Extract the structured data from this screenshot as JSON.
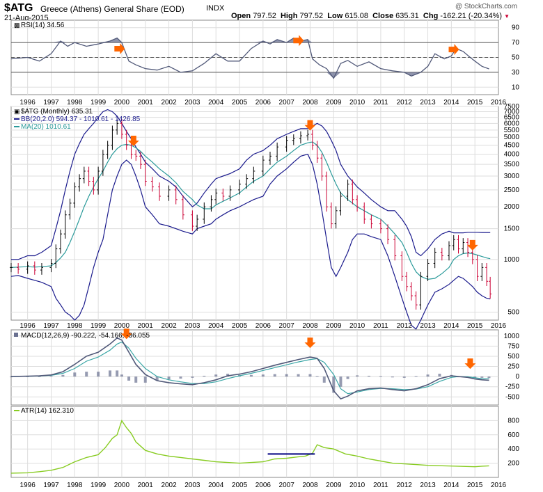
{
  "header": {
    "symbol": "$ATG",
    "name": "Greece (Athens) General Share (EOD)",
    "exchange": "INDX",
    "date": "21-Aug-2015",
    "watermark": "@ StockCharts.com",
    "open_label": "Open",
    "open": "797.52",
    "high_label": "High",
    "high": "797.52",
    "low_label": "Low",
    "low": "615.08",
    "close_label": "Close",
    "close": "635.31",
    "chg_label": "Chg",
    "chg": "-162.21 (-20.34%)",
    "chg_icon": "down-triangle-icon"
  },
  "colors": {
    "up_bar": "#000000",
    "down_bar": "#cc0033",
    "bollinger": "#1a1a8c",
    "ma": "#2a9a9a",
    "macd": "#505878",
    "signal": "#3aa6a6",
    "histogram": "#6a7090",
    "atr": "#88cc22",
    "arrow": "#ff6600",
    "rsi": "#505878",
    "rsi_fill": "#6a7090",
    "annotation_line": "#000080"
  },
  "chart_data": [
    {
      "type": "line",
      "panel": "rsi",
      "legend": "RSI(14) 34.56",
      "x": [
        1995.3,
        1996,
        1996.5,
        1997,
        1997.4,
        1997.7,
        1998,
        1998.5,
        1999,
        1999.5,
        1999.8,
        2000.0,
        2000.3,
        2000.6,
        2001,
        2001.5,
        2002,
        2002.5,
        2003,
        2003.5,
        2004,
        2004.5,
        2005,
        2005.5,
        2006,
        2006.3,
        2006.6,
        2007,
        2007.3,
        2007.6,
        2007.9,
        2008.1,
        2008.4,
        2008.7,
        2009,
        2009.3,
        2009.6,
        2010,
        2010.5,
        2011,
        2011.5,
        2012,
        2012.3,
        2012.7,
        2013,
        2013.3,
        2013.7,
        2014,
        2014.2,
        2014.5,
        2014.8,
        2015,
        2015.3,
        2015.6
      ],
      "y": [
        48,
        50,
        45,
        55,
        72,
        65,
        70,
        65,
        68,
        72,
        76,
        70,
        45,
        40,
        35,
        33,
        38,
        30,
        32,
        42,
        55,
        45,
        45,
        62,
        72,
        68,
        74,
        70,
        76,
        72,
        74,
        48,
        40,
        35,
        22,
        42,
        46,
        38,
        44,
        35,
        32,
        30,
        25,
        30,
        38,
        55,
        48,
        52,
        62,
        58,
        50,
        45,
        38,
        34.56
      ],
      "ylim": [
        0,
        100
      ],
      "ticks": [
        10,
        30,
        50,
        70,
        90
      ],
      "ref_lines": [
        30,
        50,
        70
      ],
      "arrows_x": [
        2000.1,
        2007.7,
        2014.3
      ]
    },
    {
      "type": "candlestick",
      "panel": "price",
      "scale": "log",
      "legend": [
        "$ATG (Monthly) 635.31",
        "BB(20,2.0) 594.37 - 1010.61 - 1426.85",
        "MA(20) 1010.61"
      ],
      "x": [
        1995.3,
        1995.6,
        1996,
        1996.3,
        1996.6,
        1997,
        1997.2,
        1997.4,
        1997.6,
        1997.8,
        1998,
        1998.2,
        1998.4,
        1998.6,
        1998.8,
        1999,
        1999.2,
        1999.4,
        1999.6,
        1999.8,
        2000,
        2000.2,
        2000.4,
        2000.6,
        2000.8,
        2001,
        2001.3,
        2001.6,
        2002,
        2002.3,
        2002.6,
        2003,
        2003.2,
        2003.5,
        2003.8,
        2004,
        2004.3,
        2004.6,
        2005,
        2005.3,
        2005.6,
        2006,
        2006.3,
        2006.6,
        2007,
        2007.3,
        2007.6,
        2007.9,
        2008.1,
        2008.3,
        2008.5,
        2008.7,
        2008.9,
        2009.1,
        2009.3,
        2009.6,
        2009.8,
        2010,
        2010.3,
        2010.6,
        2011,
        2011.3,
        2011.6,
        2011.9,
        2012.1,
        2012.3,
        2012.5,
        2012.7,
        2013,
        2013.3,
        2013.6,
        2013.9,
        2014.1,
        2014.3,
        2014.5,
        2014.7,
        2014.9,
        2015.1,
        2015.3,
        2015.5,
        2015.65
      ],
      "close": [
        900,
        880,
        920,
        870,
        900,
        950,
        1150,
        1400,
        1800,
        2100,
        2600,
        2900,
        3200,
        2800,
        2500,
        3200,
        4000,
        4500,
        5500,
        6000,
        5200,
        4500,
        4000,
        3900,
        3500,
        2800,
        2600,
        2300,
        2500,
        2200,
        1800,
        1550,
        1700,
        2000,
        2200,
        2400,
        2300,
        2500,
        2700,
        2900,
        3200,
        3700,
        3900,
        4400,
        4800,
        4900,
        5100,
        5200,
        4500,
        3800,
        3000,
        2000,
        1600,
        1900,
        2300,
        2700,
        2200,
        2000,
        1700,
        1600,
        1500,
        1300,
        1050,
        800,
        700,
        620,
        550,
        800,
        950,
        1100,
        1050,
        1200,
        1300,
        1150,
        1250,
        1100,
        1000,
        800,
        900,
        750,
        635.31
      ],
      "bb_upper": [
        1000,
        1000,
        1050,
        1050,
        1100,
        1200,
        1500,
        1900,
        2500,
        3200,
        4000,
        4600,
        5200,
        5600,
        6000,
        6500,
        7000,
        7200,
        7000,
        6600,
        6000,
        5400,
        4900,
        4400,
        4000,
        3600,
        3300,
        3000,
        2800,
        2600,
        2300,
        2000,
        2100,
        2400,
        2700,
        2900,
        3000,
        3100,
        3300,
        3700,
        4000,
        4200,
        4500,
        4900,
        5200,
        5400,
        5600,
        5600,
        5800,
        6000,
        5800,
        5400,
        4800,
        4200,
        3500,
        3000,
        2800,
        2600,
        2400,
        2200,
        2000,
        1900,
        1900,
        1700,
        1550,
        1350,
        1100,
        1050,
        1150,
        1300,
        1400,
        1450,
        1420,
        1420,
        1420,
        1430,
        1430,
        1430,
        1426.85,
        1426.85,
        1426.85
      ],
      "ma": [
        900,
        905,
        910,
        905,
        910,
        920,
        960,
        1020,
        1100,
        1250,
        1450,
        1700,
        2000,
        2300,
        2600,
        2900,
        3200,
        3600,
        4000,
        4300,
        4500,
        4550,
        4500,
        4350,
        4150,
        3900,
        3600,
        3300,
        3000,
        2750,
        2450,
        2200,
        2050,
        1950,
        1950,
        2050,
        2150,
        2250,
        2400,
        2600,
        2800,
        3000,
        3300,
        3600,
        3900,
        4200,
        4500,
        4650,
        4700,
        4500,
        4100,
        3600,
        3100,
        2700,
        2400,
        2200,
        2100,
        2000,
        1900,
        1800,
        1700,
        1550,
        1400,
        1250,
        1100,
        950,
        850,
        800,
        770,
        780,
        830,
        900,
        1000,
        1050,
        1080,
        1090,
        1080,
        1060,
        1040,
        1020,
        1010.61
      ],
      "bb_lower": [
        800,
        810,
        780,
        760,
        740,
        700,
        600,
        550,
        500,
        480,
        450,
        480,
        550,
        700,
        900,
        1100,
        1300,
        1800,
        2500,
        3000,
        3500,
        3700,
        3500,
        3000,
        2500,
        2000,
        1800,
        1600,
        1550,
        1500,
        1450,
        1400,
        1500,
        1550,
        1600,
        1700,
        1800,
        1900,
        2000,
        2100,
        2200,
        2300,
        2700,
        3000,
        3300,
        3600,
        3900,
        4000,
        3500,
        2700,
        1900,
        1300,
        900,
        800,
        900,
        1100,
        1300,
        1400,
        1400,
        1350,
        1300,
        1050,
        800,
        600,
        500,
        420,
        400,
        450,
        550,
        650,
        680,
        720,
        760,
        800,
        780,
        740,
        700,
        650,
        620,
        600,
        594.37
      ],
      "ylim": [
        450,
        7500
      ],
      "ticks": [
        500,
        1000,
        1500,
        2000,
        2500,
        3000,
        3500,
        4000,
        4500,
        5000,
        5500,
        6000,
        6500,
        7000,
        7500
      ],
      "arrows_x": [
        2000.5,
        2008.0,
        2014.9
      ]
    },
    {
      "type": "line",
      "panel": "macd",
      "legend": "MACD(12,26,9) -90.222, -54.166, -36.055",
      "x": [
        1995.3,
        1996,
        1996.5,
        1997,
        1997.5,
        1998,
        1998.5,
        1999,
        1999.5,
        1999.8,
        2000.0,
        2000.3,
        2000.6,
        2001,
        2001.5,
        2002,
        2002.5,
        2003,
        2003.5,
        2004,
        2004.5,
        2005,
        2005.5,
        2006,
        2006.5,
        2007,
        2007.5,
        2008,
        2008.3,
        2008.6,
        2009,
        2009.3,
        2009.6,
        2010,
        2010.5,
        2011,
        2011.5,
        2012,
        2012.5,
        2013,
        2013.5,
        2014,
        2014.3,
        2014.7,
        2015,
        2015.3,
        2015.6
      ],
      "macd": [
        0,
        10,
        20,
        40,
        120,
        300,
        500,
        600,
        800,
        950,
        900,
        600,
        300,
        50,
        -100,
        -150,
        -180,
        -200,
        -150,
        -80,
        20,
        60,
        120,
        200,
        280,
        350,
        420,
        480,
        450,
        200,
        -350,
        -550,
        -480,
        -350,
        -300,
        -280,
        -320,
        -350,
        -300,
        -200,
        -50,
        20,
        0,
        -20,
        -60,
        -80,
        -90.222
      ],
      "signal": [
        0,
        5,
        15,
        30,
        80,
        200,
        380,
        480,
        650,
        800,
        850,
        700,
        450,
        200,
        0,
        -80,
        -130,
        -170,
        -170,
        -130,
        -50,
        20,
        80,
        150,
        220,
        290,
        360,
        420,
        440,
        350,
        50,
        -300,
        -420,
        -380,
        -320,
        -290,
        -300,
        -320,
        -310,
        -250,
        -120,
        -20,
        0,
        -5,
        -30,
        -50,
        -54.166
      ],
      "histogram": [
        0,
        5,
        5,
        10,
        40,
        100,
        120,
        120,
        150,
        150,
        50,
        -100,
        -150,
        -150,
        -100,
        -70,
        -50,
        -30,
        20,
        50,
        70,
        40,
        40,
        50,
        60,
        60,
        60,
        60,
        10,
        -150,
        -400,
        -250,
        -60,
        30,
        20,
        10,
        -20,
        -30,
        10,
        50,
        70,
        40,
        0,
        -15,
        -30,
        -30,
        -36.055
      ],
      "ylim": [
        -700,
        1150
      ],
      "ticks": [
        -500,
        -250,
        0,
        250,
        500,
        750,
        1000
      ],
      "arrows_x": [
        2000.2,
        2008.0,
        2014.8
      ]
    },
    {
      "type": "line",
      "panel": "atr",
      "legend": "ATR(14) 162.310",
      "x": [
        1995.3,
        1996,
        1996.5,
        1997,
        1997.5,
        1998,
        1998.5,
        1999,
        1999.3,
        1999.6,
        1999.8,
        2000.0,
        2000.2,
        2000.4,
        2000.6,
        2001,
        2001.5,
        2002,
        2002.5,
        2003,
        2003.5,
        2004,
        2004.5,
        2005,
        2005.5,
        2006,
        2006.5,
        2007,
        2007.5,
        2007.8,
        2008.1,
        2008.3,
        2008.6,
        2009,
        2009.5,
        2010,
        2010.5,
        2011,
        2011.5,
        2012,
        2012.5,
        2013,
        2013.5,
        2014,
        2014.5,
        2015,
        2015.3,
        2015.6
      ],
      "y": [
        60,
        65,
        80,
        100,
        140,
        220,
        280,
        320,
        420,
        550,
        600,
        800,
        700,
        620,
        500,
        380,
        330,
        300,
        280,
        260,
        240,
        220,
        210,
        200,
        210,
        220,
        260,
        270,
        290,
        300,
        340,
        460,
        420,
        400,
        330,
        300,
        260,
        230,
        200,
        190,
        180,
        170,
        165,
        160,
        155,
        150,
        158,
        162.31
      ],
      "ylim": [
        0,
        1000
      ],
      "ticks": [
        200,
        400,
        600,
        800
      ],
      "annotation": {
        "x_from": 2006.2,
        "x_to": 2008.2,
        "y": 330
      }
    }
  ],
  "x_axis": {
    "labels": [
      "1996",
      "1997",
      "1998",
      "1999",
      "2000",
      "2001",
      "2002",
      "2003",
      "2004",
      "2005",
      "2006",
      "2007",
      "2008",
      "2009",
      "2010",
      "2011",
      "2012",
      "2013",
      "2014",
      "2015",
      "2016"
    ],
    "years": [
      1996,
      1997,
      1998,
      1999,
      2000,
      2001,
      2002,
      2003,
      2004,
      2005,
      2006,
      2007,
      2008,
      2009,
      2010,
      2011,
      2012,
      2013,
      2014,
      2015,
      2016
    ]
  }
}
